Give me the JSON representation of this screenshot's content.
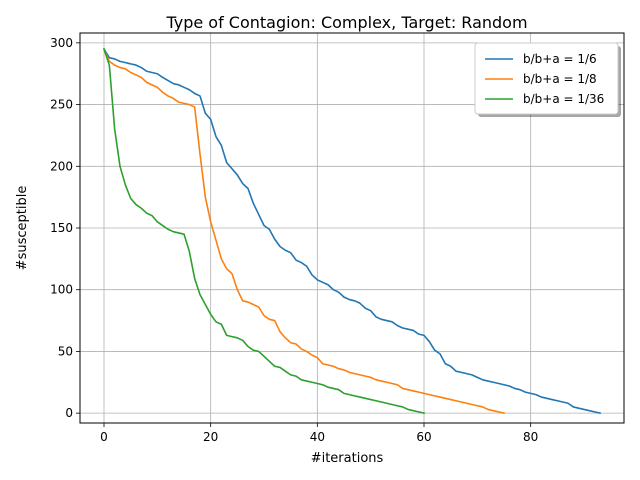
{
  "chart_data": {
    "type": "line",
    "title": "Type of Contagion: Complex, Target: Random",
    "xlabel": "#iterations",
    "ylabel": "#susceptible",
    "xlim": [
      -4.5,
      97.5
    ],
    "ylim": [
      -8,
      308
    ],
    "xticks": [
      0,
      20,
      40,
      60,
      80
    ],
    "yticks": [
      0,
      50,
      100,
      150,
      200,
      250,
      300
    ],
    "grid": true,
    "legend_position": "top-right",
    "series": [
      {
        "name": "b/b+a = 1/6",
        "color": "#1f77b4",
        "points": [
          [
            0,
            295
          ],
          [
            1,
            288
          ],
          [
            2,
            287
          ],
          [
            3,
            285
          ],
          [
            5,
            283
          ],
          [
            6,
            282
          ],
          [
            7,
            280
          ],
          [
            8,
            277
          ],
          [
            10,
            275
          ],
          [
            11,
            272
          ],
          [
            13,
            267
          ],
          [
            14,
            266
          ],
          [
            15,
            264
          ],
          [
            16,
            262
          ],
          [
            17,
            259
          ],
          [
            18,
            257
          ],
          [
            19,
            243
          ],
          [
            20,
            238
          ],
          [
            21,
            224
          ],
          [
            22,
            217
          ],
          [
            23,
            203
          ],
          [
            24,
            198
          ],
          [
            25,
            193
          ],
          [
            26,
            186
          ],
          [
            27,
            182
          ],
          [
            28,
            170
          ],
          [
            29,
            161
          ],
          [
            30,
            152
          ],
          [
            31,
            149
          ],
          [
            32,
            141
          ],
          [
            33,
            135
          ],
          [
            34,
            132
          ],
          [
            35,
            130
          ],
          [
            36,
            124
          ],
          [
            37,
            122
          ],
          [
            38,
            119
          ],
          [
            39,
            112
          ],
          [
            40,
            108
          ],
          [
            41,
            106
          ],
          [
            42,
            104
          ],
          [
            43,
            100
          ],
          [
            44,
            98
          ],
          [
            45,
            94
          ],
          [
            46,
            92
          ],
          [
            47,
            91
          ],
          [
            48,
            89
          ],
          [
            49,
            85
          ],
          [
            50,
            83
          ],
          [
            51,
            78
          ],
          [
            52,
            76
          ],
          [
            53,
            75
          ],
          [
            54,
            74
          ],
          [
            55,
            71
          ],
          [
            56,
            69
          ],
          [
            57,
            68
          ],
          [
            58,
            67
          ],
          [
            59,
            64
          ],
          [
            60,
            63
          ],
          [
            61,
            58
          ],
          [
            62,
            51
          ],
          [
            63,
            48
          ],
          [
            64,
            40
          ],
          [
            65,
            38
          ],
          [
            66,
            34
          ],
          [
            67,
            33
          ],
          [
            68,
            32
          ],
          [
            69,
            31
          ],
          [
            70,
            29
          ],
          [
            71,
            27
          ],
          [
            72,
            26
          ],
          [
            73,
            25
          ],
          [
            74,
            24
          ],
          [
            75,
            23
          ],
          [
            76,
            22
          ],
          [
            77,
            20
          ],
          [
            78,
            19
          ],
          [
            79,
            17
          ],
          [
            80,
            16
          ],
          [
            81,
            15
          ],
          [
            82,
            13
          ],
          [
            83,
            12
          ],
          [
            84,
            11
          ],
          [
            85,
            10
          ],
          [
            86,
            9
          ],
          [
            87,
            8
          ],
          [
            88,
            5
          ],
          [
            89,
            4
          ],
          [
            90,
            3
          ],
          [
            91,
            2
          ],
          [
            92,
            1
          ],
          [
            93,
            0
          ]
        ]
      },
      {
        "name": "b/b+a = 1/8",
        "color": "#ff7f0e",
        "points": [
          [
            0,
            295
          ],
          [
            1,
            285
          ],
          [
            2,
            282
          ],
          [
            3,
            280
          ],
          [
            4,
            279
          ],
          [
            5,
            276
          ],
          [
            6,
            274
          ],
          [
            7,
            272
          ],
          [
            8,
            268
          ],
          [
            9,
            266
          ],
          [
            10,
            264
          ],
          [
            11,
            260
          ],
          [
            12,
            257
          ],
          [
            13,
            255
          ],
          [
            14,
            252
          ],
          [
            15,
            251
          ],
          [
            16,
            250
          ],
          [
            17,
            248
          ],
          [
            18,
            210
          ],
          [
            19,
            175
          ],
          [
            20,
            155
          ],
          [
            21,
            140
          ],
          [
            22,
            125
          ],
          [
            23,
            117
          ],
          [
            24,
            113
          ],
          [
            25,
            100
          ],
          [
            26,
            91
          ],
          [
            27,
            90
          ],
          [
            28,
            88
          ],
          [
            29,
            86
          ],
          [
            30,
            79
          ],
          [
            31,
            76
          ],
          [
            32,
            75
          ],
          [
            33,
            66
          ],
          [
            34,
            61
          ],
          [
            35,
            57
          ],
          [
            36,
            56
          ],
          [
            37,
            52
          ],
          [
            38,
            50
          ],
          [
            39,
            47
          ],
          [
            40,
            45
          ],
          [
            41,
            40
          ],
          [
            42,
            39
          ],
          [
            43,
            38
          ],
          [
            44,
            36
          ],
          [
            45,
            35
          ],
          [
            46,
            33
          ],
          [
            47,
            32
          ],
          [
            48,
            31
          ],
          [
            49,
            30
          ],
          [
            50,
            29
          ],
          [
            51,
            27
          ],
          [
            52,
            26
          ],
          [
            53,
            25
          ],
          [
            54,
            24
          ],
          [
            55,
            23
          ],
          [
            56,
            20
          ],
          [
            57,
            19
          ],
          [
            58,
            18
          ],
          [
            59,
            17
          ],
          [
            60,
            16
          ],
          [
            61,
            15
          ],
          [
            62,
            14
          ],
          [
            63,
            13
          ],
          [
            64,
            12
          ],
          [
            65,
            11
          ],
          [
            66,
            10
          ],
          [
            67,
            9
          ],
          [
            68,
            8
          ],
          [
            69,
            7
          ],
          [
            70,
            6
          ],
          [
            71,
            5
          ],
          [
            72,
            3
          ],
          [
            73,
            2
          ],
          [
            74,
            1
          ],
          [
            75,
            0
          ]
        ]
      },
      {
        "name": "b/b+a = 1/36",
        "color": "#2ca02c",
        "points": [
          [
            0,
            295
          ],
          [
            1,
            282
          ],
          [
            2,
            230
          ],
          [
            3,
            200
          ],
          [
            4,
            185
          ],
          [
            5,
            174
          ],
          [
            6,
            169
          ],
          [
            7,
            166
          ],
          [
            8,
            162
          ],
          [
            9,
            160
          ],
          [
            10,
            155
          ],
          [
            11,
            152
          ],
          [
            12,
            149
          ],
          [
            13,
            147
          ],
          [
            14,
            146
          ],
          [
            15,
            145
          ],
          [
            16,
            131
          ],
          [
            17,
            109
          ],
          [
            18,
            96
          ],
          [
            19,
            88
          ],
          [
            20,
            80
          ],
          [
            21,
            74
          ],
          [
            22,
            72
          ],
          [
            23,
            63
          ],
          [
            24,
            62
          ],
          [
            25,
            61
          ],
          [
            26,
            59
          ],
          [
            27,
            54
          ],
          [
            28,
            51
          ],
          [
            29,
            50
          ],
          [
            30,
            46
          ],
          [
            31,
            42
          ],
          [
            32,
            38
          ],
          [
            33,
            37
          ],
          [
            34,
            34
          ],
          [
            35,
            31
          ],
          [
            36,
            30
          ],
          [
            37,
            27
          ],
          [
            38,
            26
          ],
          [
            39,
            25
          ],
          [
            40,
            24
          ],
          [
            41,
            23
          ],
          [
            42,
            21
          ],
          [
            43,
            20
          ],
          [
            44,
            19
          ],
          [
            45,
            16
          ],
          [
            46,
            15
          ],
          [
            47,
            14
          ],
          [
            48,
            13
          ],
          [
            49,
            12
          ],
          [
            50,
            11
          ],
          [
            51,
            10
          ],
          [
            52,
            9
          ],
          [
            53,
            8
          ],
          [
            54,
            7
          ],
          [
            55,
            6
          ],
          [
            56,
            5
          ],
          [
            57,
            3
          ],
          [
            58,
            2
          ],
          [
            59,
            1
          ],
          [
            60,
            0
          ]
        ]
      }
    ]
  }
}
